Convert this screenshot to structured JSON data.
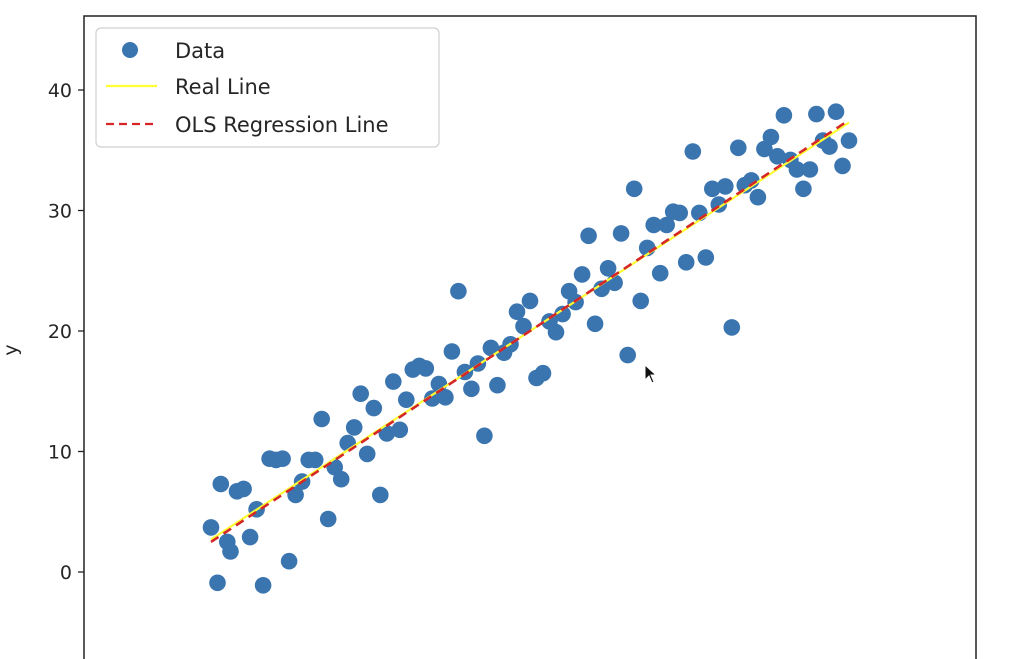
{
  "chart_data": {
    "type": "scatter",
    "title": "",
    "xlabel": "",
    "ylabel": "y",
    "ylim": [
      -6,
      46
    ],
    "xlim": [
      -0.5,
      10.5
    ],
    "yticks": [
      0,
      10,
      20,
      30,
      40
    ],
    "grid": false,
    "legend_position": "upper-left",
    "legend": [
      "Data",
      "Real Line",
      "OLS Regression Line"
    ],
    "series": [
      {
        "name": "Data",
        "kind": "scatter",
        "color": "#3a75b0",
        "points": [
          [
            0.0,
            3.7
          ],
          [
            0.1,
            -0.9
          ],
          [
            0.15,
            7.3
          ],
          [
            0.25,
            2.5
          ],
          [
            0.3,
            1.7
          ],
          [
            0.4,
            6.7
          ],
          [
            0.5,
            6.9
          ],
          [
            0.6,
            2.9
          ],
          [
            0.7,
            5.2
          ],
          [
            0.8,
            -1.1
          ],
          [
            0.9,
            9.4
          ],
          [
            1.0,
            9.3
          ],
          [
            1.1,
            9.4
          ],
          [
            1.2,
            0.9
          ],
          [
            1.3,
            6.4
          ],
          [
            1.4,
            7.5
          ],
          [
            1.5,
            9.3
          ],
          [
            1.6,
            9.3
          ],
          [
            1.7,
            12.7
          ],
          [
            1.8,
            4.4
          ],
          [
            1.9,
            8.7
          ],
          [
            2.0,
            7.7
          ],
          [
            2.1,
            10.7
          ],
          [
            2.2,
            12.0
          ],
          [
            2.3,
            14.8
          ],
          [
            2.4,
            9.8
          ],
          [
            2.5,
            13.6
          ],
          [
            2.6,
            6.4
          ],
          [
            2.7,
            11.5
          ],
          [
            2.8,
            15.8
          ],
          [
            2.9,
            11.8
          ],
          [
            3.0,
            14.3
          ],
          [
            3.1,
            16.8
          ],
          [
            3.2,
            17.1
          ],
          [
            3.3,
            16.9
          ],
          [
            3.4,
            14.4
          ],
          [
            3.5,
            15.6
          ],
          [
            3.6,
            14.5
          ],
          [
            3.7,
            18.3
          ],
          [
            3.8,
            23.3
          ],
          [
            3.9,
            16.6
          ],
          [
            4.0,
            15.2
          ],
          [
            4.1,
            17.3
          ],
          [
            4.2,
            11.3
          ],
          [
            4.3,
            18.6
          ],
          [
            4.4,
            15.5
          ],
          [
            4.5,
            18.2
          ],
          [
            4.6,
            18.9
          ],
          [
            4.7,
            21.6
          ],
          [
            4.8,
            20.4
          ],
          [
            4.9,
            22.5
          ],
          [
            5.0,
            16.1
          ],
          [
            5.1,
            16.5
          ],
          [
            5.2,
            20.8
          ],
          [
            5.3,
            19.9
          ],
          [
            5.4,
            21.4
          ],
          [
            5.5,
            23.3
          ],
          [
            5.6,
            22.4
          ],
          [
            5.7,
            24.7
          ],
          [
            5.8,
            27.9
          ],
          [
            5.9,
            20.6
          ],
          [
            6.0,
            23.5
          ],
          [
            6.1,
            25.2
          ],
          [
            6.2,
            24.0
          ],
          [
            6.3,
            28.1
          ],
          [
            6.4,
            18.0
          ],
          [
            6.5,
            31.8
          ],
          [
            6.6,
            22.5
          ],
          [
            6.7,
            26.9
          ],
          [
            6.8,
            28.8
          ],
          [
            6.9,
            24.8
          ],
          [
            7.0,
            28.8
          ],
          [
            7.1,
            29.9
          ],
          [
            7.2,
            29.8
          ],
          [
            7.3,
            25.7
          ],
          [
            7.4,
            34.9
          ],
          [
            7.5,
            29.8
          ],
          [
            7.6,
            26.1
          ],
          [
            7.7,
            31.8
          ],
          [
            7.8,
            30.5
          ],
          [
            7.9,
            32.0
          ],
          [
            8.0,
            20.3
          ],
          [
            8.1,
            35.2
          ],
          [
            8.2,
            32.1
          ],
          [
            8.3,
            32.5
          ],
          [
            8.4,
            31.1
          ],
          [
            8.5,
            35.1
          ],
          [
            8.6,
            36.1
          ],
          [
            8.7,
            34.5
          ],
          [
            8.8,
            37.9
          ],
          [
            8.9,
            34.2
          ],
          [
            9.0,
            33.4
          ],
          [
            9.1,
            31.8
          ],
          [
            9.2,
            33.4
          ],
          [
            9.3,
            38.0
          ],
          [
            9.4,
            35.8
          ],
          [
            9.5,
            35.3
          ],
          [
            9.6,
            38.2
          ],
          [
            9.7,
            33.7
          ],
          [
            9.8,
            35.8
          ]
        ]
      },
      {
        "name": "Real Line",
        "kind": "line",
        "color": "#ffff33",
        "style": "solid",
        "x": [
          0.0,
          9.8
        ],
        "y": [
          2.7,
          37.3
        ]
      },
      {
        "name": "OLS Regression Line",
        "kind": "line",
        "color": "#d62728",
        "style": "dashed",
        "x": [
          0.0,
          9.8
        ],
        "y": [
          2.5,
          37.5
        ]
      }
    ]
  }
}
